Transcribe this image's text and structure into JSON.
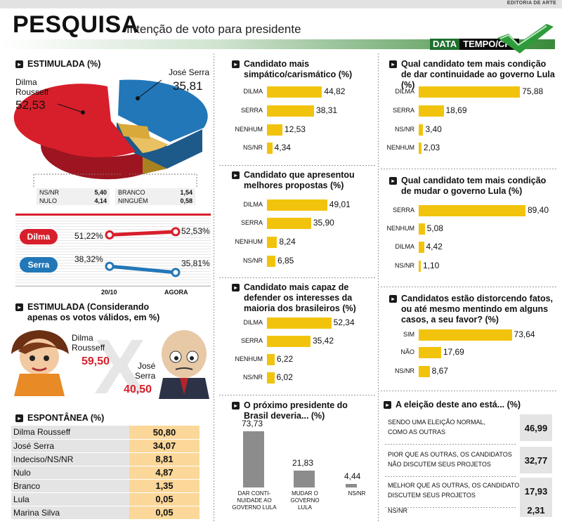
{
  "header": {
    "section": "EDITORIA DE ARTE",
    "title": "PESQUISA",
    "subtitle": "Intenção de voto para presidente",
    "source_a": "DATA",
    "source_b": "TEMPO/CP2"
  },
  "estimulada": {
    "title": "ESTIMULADA (%)",
    "dilma_name": "Dilma\nRousseff",
    "dilma_value": "52,53",
    "serra_name": "José Serra",
    "serra_value": "35,81",
    "others": [
      {
        "label": "NS/NR",
        "value": "5,40"
      },
      {
        "label": "NULO",
        "value": "4,14"
      },
      {
        "label": "BRANCO",
        "value": "1,54"
      },
      {
        "label": "NINGUÉM",
        "value": "0,58"
      }
    ]
  },
  "chart_data": [
    {
      "type": "pie",
      "title": "ESTIMULADA (%)",
      "labels": [
        "Dilma Rousseff",
        "José Serra",
        "Outros"
      ],
      "values": [
        52.53,
        35.81,
        11.66
      ]
    },
    {
      "type": "line",
      "categories": [
        "20/10",
        "AGORA"
      ],
      "series": [
        {
          "name": "Dilma",
          "values": [
            51.22,
            52.53
          ],
          "labels": [
            "51,22%",
            "52,53%"
          ]
        },
        {
          "name": "Serra",
          "values": [
            38.32,
            35.81
          ],
          "labels": [
            "38,32%",
            "35,81%"
          ]
        }
      ]
    },
    {
      "type": "bar",
      "title": "Candidato mais simpático/carismático (%)",
      "categories": [
        "DILMA",
        "SERRA",
        "NENHUM",
        "NS/NR"
      ],
      "values": [
        44.82,
        38.31,
        12.53,
        4.34
      ],
      "labels": [
        "44,82",
        "38,31",
        "12,53",
        "4,34"
      ]
    },
    {
      "type": "bar",
      "title": "Candidato que apresentou melhores propostas (%)",
      "categories": [
        "DILMA",
        "SERRA",
        "NENHUM",
        "NS/NR"
      ],
      "values": [
        49.01,
        35.9,
        8.24,
        6.85
      ],
      "labels": [
        "49,01",
        "35,90",
        "8,24",
        "6,85"
      ]
    },
    {
      "type": "bar",
      "title": "Candidato mais capaz de defender os interesses da maioria dos brasileiros (%)",
      "categories": [
        "DILMA",
        "SERRA",
        "NENHUM",
        "NS/NR"
      ],
      "values": [
        52.34,
        35.42,
        6.22,
        6.02
      ],
      "labels": [
        "52,34",
        "35,42",
        "6,22",
        "6,02"
      ]
    },
    {
      "type": "bar",
      "title": "O próximo presidente do Brasil deveria... (%)",
      "categories": [
        "DAR CONTI-\nNUIDADE AO\nGOVERNO LULA",
        "MUDAR O\nGOVERNO\nLULA",
        "NS/NR"
      ],
      "values": [
        73.73,
        21.83,
        4.44
      ],
      "labels": [
        "73,73",
        "21,83",
        "4,44"
      ]
    },
    {
      "type": "bar",
      "title": "Qual candidato tem mais condição de dar continuidade ao governo Lula (%)",
      "categories": [
        "DILMA",
        "SERRA",
        "NS/NR",
        "NENHUM"
      ],
      "values": [
        75.88,
        18.69,
        3.4,
        2.03
      ],
      "labels": [
        "75,88",
        "18,69",
        "3,40",
        "2,03"
      ]
    },
    {
      "type": "bar",
      "title": "Qual candidato tem mais condição de mudar o governo Lula (%)",
      "categories": [
        "SERRA",
        "NENHUM",
        "DILMA",
        "NS/NR"
      ],
      "values": [
        89.4,
        5.08,
        4.42,
        1.1
      ],
      "labels": [
        "89,40",
        "5,08",
        "4,42",
        "1,10"
      ]
    },
    {
      "type": "bar",
      "title": "Candidatos estão distorcendo fatos, ou até mesmo mentindo em alguns casos, a seu favor? (%)",
      "categories": [
        "SIM",
        "NÃO",
        "NS/NR"
      ],
      "values": [
        73.64,
        17.69,
        8.67
      ],
      "labels": [
        "73,64",
        "17,69",
        "8,67"
      ]
    }
  ],
  "trend": {
    "dilma": "Dilma",
    "serra": "Serra",
    "x1": "20/10",
    "x2": "AGORA"
  },
  "validos": {
    "title": "ESTIMULADA (Considerando\napenas os votos válidos, em %)",
    "dilma_name": "Dilma\nRousseff",
    "dilma_value": "59,50",
    "serra_name": "José\nSerra",
    "serra_value": "40,50",
    "versus": "X"
  },
  "espontanea": {
    "title": "ESPONTÂNEA (%)",
    "rows": [
      {
        "name": "Dilma Rousseff",
        "value": "50,80"
      },
      {
        "name": "José Serra",
        "value": "34,07"
      },
      {
        "name": "Indeciso/NS/NR",
        "value": "8,81"
      },
      {
        "name": "Nulo",
        "value": "4,87"
      },
      {
        "name": "Branco",
        "value": "1,35"
      },
      {
        "name": "Lula",
        "value": "0,05"
      },
      {
        "name": "Marina Silva",
        "value": "0,05"
      }
    ]
  },
  "eleicao": {
    "title": "A eleição deste ano está... (%)",
    "rows": [
      {
        "text": "SENDO UMA ELEIÇÃO NORMAL,\nCOMO AS OUTRAS",
        "value": "46,99"
      },
      {
        "text": "PIOR QUE AS OUTRAS, OS CANDIDATOS\nNÃO DISCUTEM SEUS PROJETOS",
        "value": "32,77"
      },
      {
        "text": "MELHOR QUE AS OUTRAS, OS CANDIDATOS\nDISCUTEM SEUS PROJETOS",
        "value": "17,93"
      },
      {
        "text": "NS/NR",
        "value": "2,31"
      }
    ]
  },
  "colors": {
    "dilma": "#d71f2b",
    "serra": "#2277b8",
    "bar": "#f2c30d",
    "column": "#8c8c8c"
  }
}
